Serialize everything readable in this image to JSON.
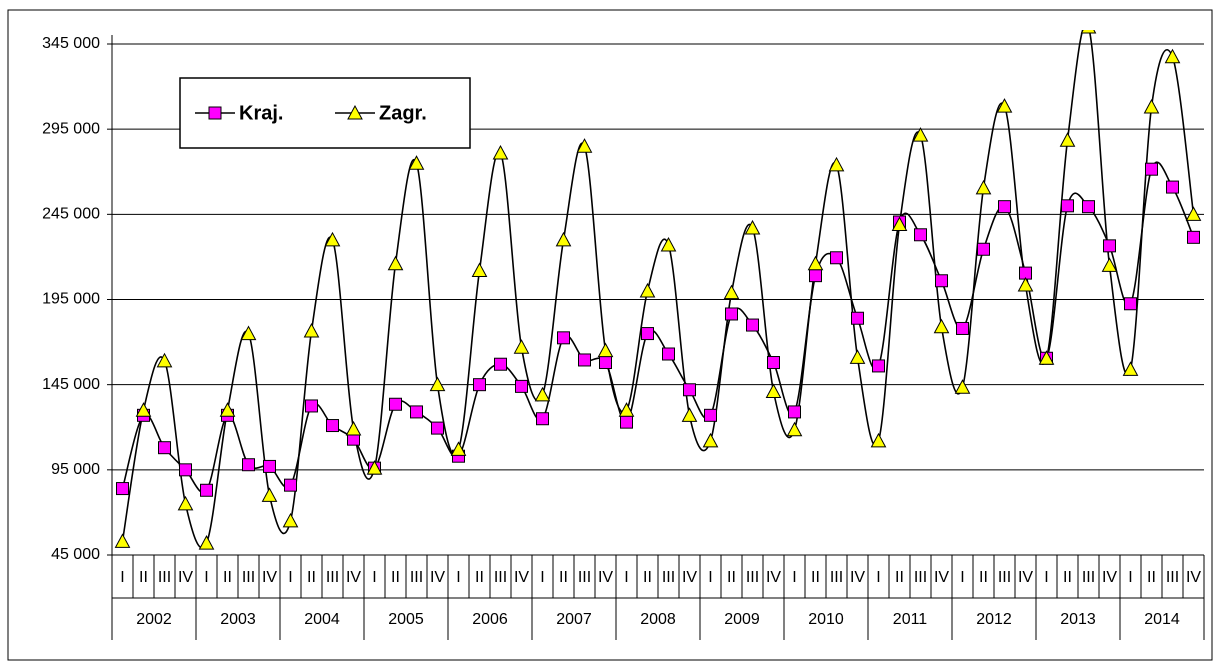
{
  "chart_data": {
    "type": "line",
    "categories": [
      "I",
      "II",
      "III",
      "IV",
      "I",
      "II",
      "III",
      "IV",
      "I",
      "II",
      "III",
      "IV",
      "I",
      "II",
      "III",
      "IV",
      "I",
      "II",
      "III",
      "IV",
      "I",
      "II",
      "III",
      "IV",
      "I",
      "II",
      "III",
      "IV",
      "I",
      "II",
      "III",
      "IV",
      "I",
      "II",
      "III",
      "IV",
      "I",
      "II",
      "III",
      "IV",
      "I",
      "II",
      "III",
      "IV",
      "I",
      "II",
      "III",
      "IV",
      "I",
      "II",
      "III",
      "IV"
    ],
    "years": [
      "2002",
      "2003",
      "2004",
      "2005",
      "2006",
      "2007",
      "2008",
      "2009",
      "2010",
      "2011",
      "2012",
      "2013",
      "2014"
    ],
    "series": [
      {
        "name": "Kraj.",
        "color": "#ff00ff",
        "marker": "square",
        "values": [
          84000,
          127000,
          108000,
          95000,
          83000,
          127000,
          98000,
          97000,
          86000,
          132500,
          121000,
          113000,
          96000,
          133500,
          129000,
          119500,
          103000,
          145000,
          157000,
          144000,
          125000,
          172500,
          159500,
          158000,
          123000,
          175000,
          163000,
          142000,
          127000,
          186500,
          180000,
          158000,
          129000,
          209000,
          219500,
          184000,
          156000,
          240500,
          233000,
          206000,
          178000,
          224500,
          249500,
          210500,
          160500,
          250000,
          249500,
          226500,
          192500,
          271500,
          261000,
          231500
        ]
      },
      {
        "name": "Zagr.",
        "color": "#ffff00",
        "marker": "triangle",
        "values": [
          53000,
          130000,
          159000,
          75000,
          52000,
          130000,
          175000,
          80000,
          65000,
          176500,
          230000,
          119000,
          96000,
          216000,
          275000,
          145000,
          107000,
          212000,
          281000,
          167000,
          139000,
          230000,
          285000,
          165000,
          130000,
          200000,
          227000,
          127000,
          112000,
          199000,
          237000,
          141000,
          118500,
          216000,
          274000,
          161000,
          112000,
          239000,
          291500,
          179000,
          143500,
          260500,
          308500,
          203500,
          160500,
          288500,
          355000,
          215000,
          154000,
          308000,
          337500,
          245000
        ]
      }
    ],
    "ylim": [
      45000,
      345000
    ],
    "yticks": [
      {
        "value": 45000,
        "label": "45 000"
      },
      {
        "value": 95000,
        "label": "95 000"
      },
      {
        "value": 145000,
        "label": "145 000"
      },
      {
        "value": 195000,
        "label": "195 000"
      },
      {
        "value": 245000,
        "label": "245 000"
      },
      {
        "value": 295000,
        "label": "295 000"
      },
      {
        "value": 345000,
        "label": "345 000"
      }
    ],
    "grid": true,
    "smooth": true,
    "legend": "top-left"
  }
}
